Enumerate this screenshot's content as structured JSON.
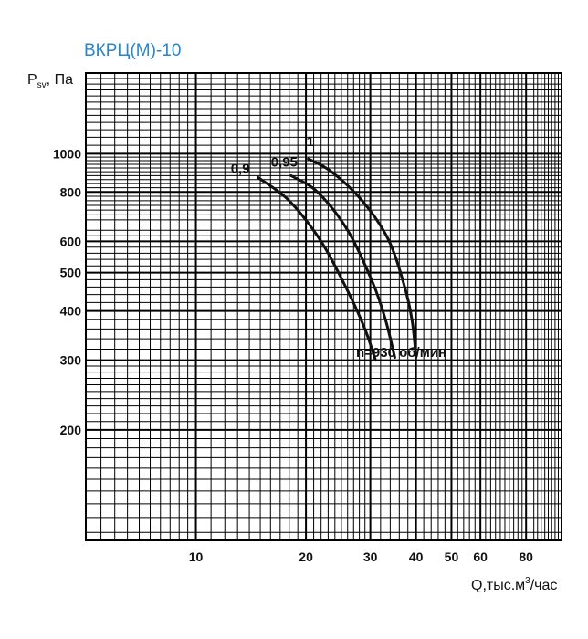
{
  "chart_data": {
    "type": "line",
    "title": "ВКРЦ(М)-10",
    "ylabel_main": "P",
    "ylabel_sub": "sv",
    "ylabel_unit": ", Па",
    "xlabel_main": "Q,тыс.м",
    "xlabel_sup": "3",
    "xlabel_unit": "/час",
    "x_scale": "log",
    "y_scale": "log",
    "xlim": [
      5,
      100
    ],
    "ylim": [
      105,
      1600
    ],
    "grid": true,
    "x_ticks": [
      {
        "value": 10,
        "label": "10"
      },
      {
        "value": 20,
        "label": "20"
      },
      {
        "value": 30,
        "label": "30"
      },
      {
        "value": 40,
        "label": "40"
      },
      {
        "value": 50,
        "label": "50"
      },
      {
        "value": 60,
        "label": "60"
      },
      {
        "value": 80,
        "label": "80"
      }
    ],
    "y_ticks": [
      {
        "value": 1000,
        "label": "1000"
      },
      {
        "value": 800,
        "label": "800"
      },
      {
        "value": 600,
        "label": "600"
      },
      {
        "value": 500,
        "label": "500"
      },
      {
        "value": 400,
        "label": "400"
      },
      {
        "value": 300,
        "label": "300"
      },
      {
        "value": 200,
        "label": "200"
      }
    ],
    "series": [
      {
        "name": "0,9",
        "points": [
          [
            14.8,
            870
          ],
          [
            18.0,
            760
          ],
          [
            22.0,
            600
          ],
          [
            26.0,
            450
          ],
          [
            29.0,
            360
          ],
          [
            31.0,
            300
          ]
        ]
      },
      {
        "name": "0,95",
        "points": [
          [
            18.2,
            880
          ],
          [
            21.5,
            800
          ],
          [
            26.0,
            640
          ],
          [
            30.5,
            470
          ],
          [
            33.0,
            380
          ],
          [
            35.0,
            305
          ]
        ]
      },
      {
        "name": "1",
        "points": [
          [
            20.3,
            970
          ],
          [
            23.5,
            900
          ],
          [
            28.5,
            760
          ],
          [
            33.5,
            610
          ],
          [
            37.0,
            470
          ],
          [
            39.0,
            380
          ],
          [
            40.0,
            305
          ]
        ]
      }
    ],
    "annotation": "n=930 об/мин"
  }
}
